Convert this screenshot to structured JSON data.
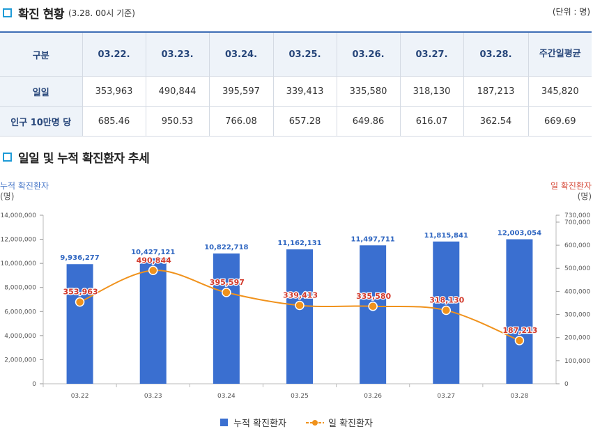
{
  "header": {
    "title": "확진 현황",
    "subtitle": "(3.28. 00시 기준)",
    "unit": "(단위 : 명)"
  },
  "table": {
    "corner": "구분",
    "columns": [
      "03.22.",
      "03.23.",
      "03.24.",
      "03.25.",
      "03.26.",
      "03.27.",
      "03.28.",
      "주간일평균"
    ],
    "rows": [
      {
        "label": "일일",
        "values": [
          "353,963",
          "490,844",
          "395,597",
          "339,413",
          "335,580",
          "318,130",
          "187,213",
          "345,820"
        ]
      },
      {
        "label": "인구 10만명 당",
        "values": [
          "685.46",
          "950.53",
          "766.08",
          "657.28",
          "649.86",
          "616.07",
          "362.54",
          "669.69"
        ]
      }
    ]
  },
  "trend": {
    "title": "일일 및 누적 확진환자 추세"
  },
  "colors": {
    "bar": "#3a6fd0",
    "line": "#f0921c",
    "left_axis_title": "#4a79c9",
    "right_axis_title": "#d64b3a",
    "bar_label": "#2f66c1",
    "line_label": "#d23a2c"
  },
  "chart_data": {
    "type": "bar",
    "categories": [
      "03.22",
      "03.23",
      "03.24",
      "03.25",
      "03.26",
      "03.27",
      "03.28"
    ],
    "series": [
      {
        "name": "누적 확진환자",
        "type": "bar",
        "axis": "left",
        "values": [
          9936277,
          10427121,
          10822718,
          11162131,
          11497711,
          11815841,
          12003054
        ]
      },
      {
        "name": "일 확진환자",
        "type": "line",
        "axis": "right",
        "values": [
          353963,
          490844,
          395597,
          339413,
          335580,
          318130,
          187213
        ]
      }
    ],
    "ylabel_left": "누적 확진환자",
    "ylabel_left_unit": "(명)",
    "ylabel_right": "일 확진환자",
    "ylabel_right_unit": "(명)",
    "y_left_ticks": [
      0,
      2000000,
      4000000,
      6000000,
      8000000,
      10000000,
      12000000,
      14000000
    ],
    "y_left_ticks_text": [
      "0",
      "2,000,000",
      "4,000,000",
      "6,000,000",
      "8,000,000",
      "10,000,000",
      "12,000,000",
      "14,000,000"
    ],
    "y_right_ticks": [
      0,
      100000,
      200000,
      300000,
      400000,
      500000,
      600000,
      700000,
      730000
    ],
    "y_right_ticks_text": [
      "0",
      "100,000",
      "200,000",
      "300,000",
      "400,000",
      "500,000",
      "600,000",
      "700,000",
      "730,000"
    ],
    "ylim_left": [
      0,
      14000000
    ],
    "ylim_right": [
      0,
      730000
    ],
    "legend_position": "bottom",
    "grid": false
  }
}
